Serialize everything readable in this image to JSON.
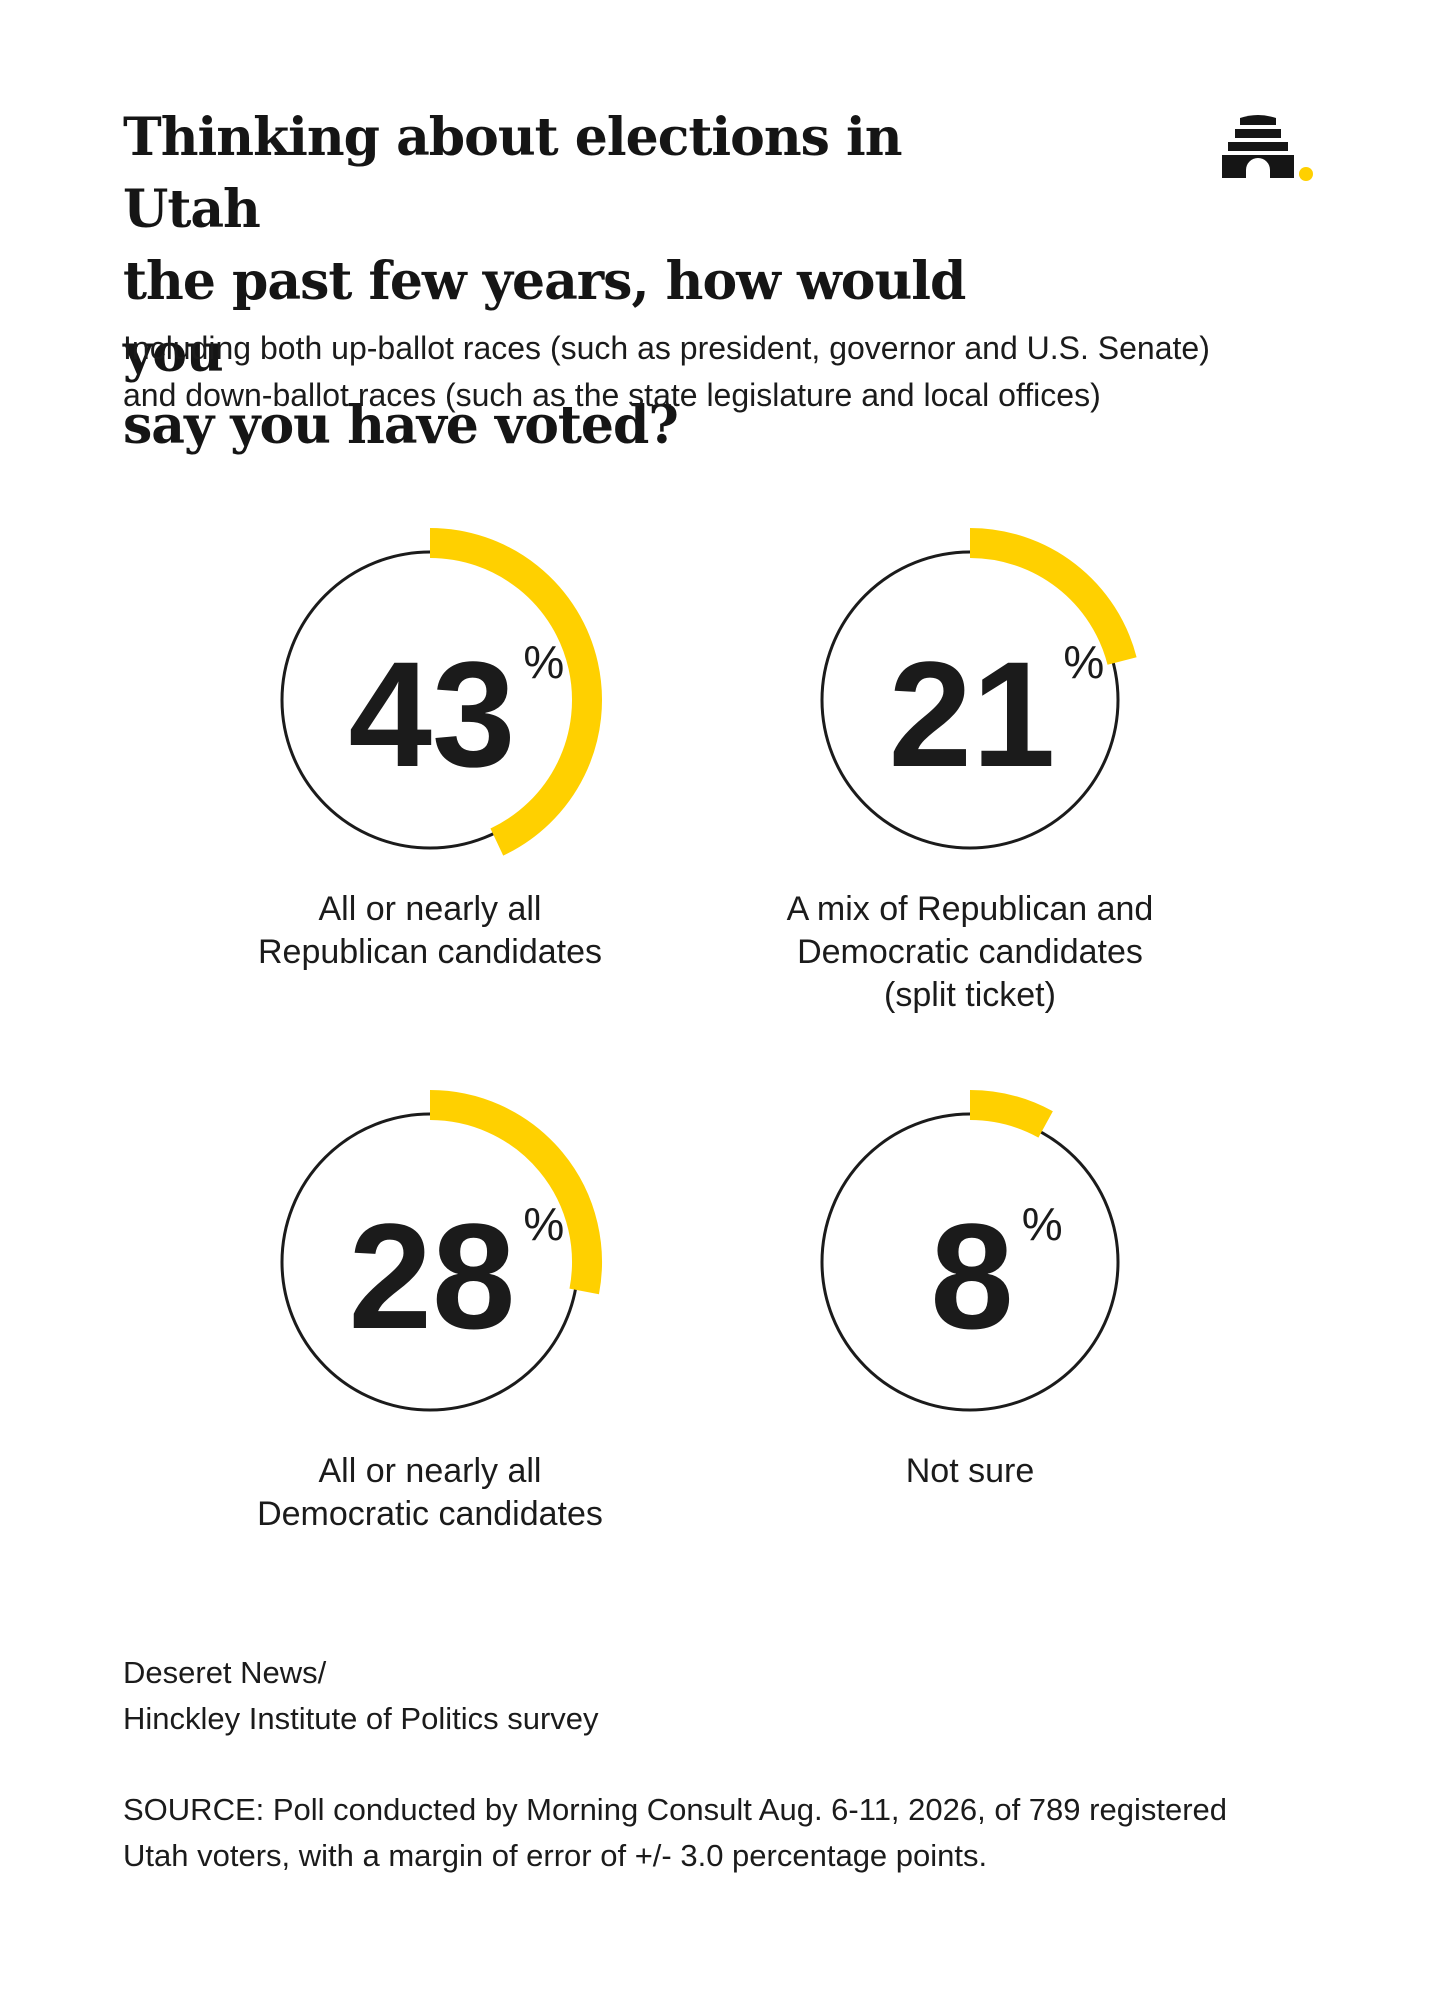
{
  "header": {
    "title_lines": [
      "Thinking about elections in Utah",
      "the past few years, how would you",
      "say you have voted?"
    ],
    "subtitle_lines": [
      "Including both up-ballot races (such as president, governor and U.S. Senate)",
      "and down-ballot races (such as the state legislature and local offices)"
    ],
    "logo_icon": "beehive-logo-icon"
  },
  "colors": {
    "accent": "#FFD000",
    "ring": "#1b1b1b",
    "text": "#1b1b1b",
    "background": "#ffffff"
  },
  "chart_data": {
    "type": "pie",
    "unit": "%",
    "items": [
      {
        "value": 43,
        "value_label": "43",
        "label": "All or nearly all\nRepublican candidates"
      },
      {
        "value": 21,
        "value_label": "21",
        "label": "A mix of Republican and\nDemocratic candidates\n(split ticket)"
      },
      {
        "value": 28,
        "value_label": "28",
        "label": "All or nearly all\nDemocratic candidates"
      },
      {
        "value": 8,
        "value_label": "8",
        "label": "Not sure"
      }
    ]
  },
  "footer": {
    "credit_lines": [
      "Deseret News/",
      "Hinckley Institute of Politics survey"
    ],
    "source_lines": [
      "SOURCE: Poll conducted by Morning Consult Aug. 6-11, 2026, of 789 registered",
      "Utah voters, with a margin of error of +/- 3.0 percentage points."
    ]
  }
}
